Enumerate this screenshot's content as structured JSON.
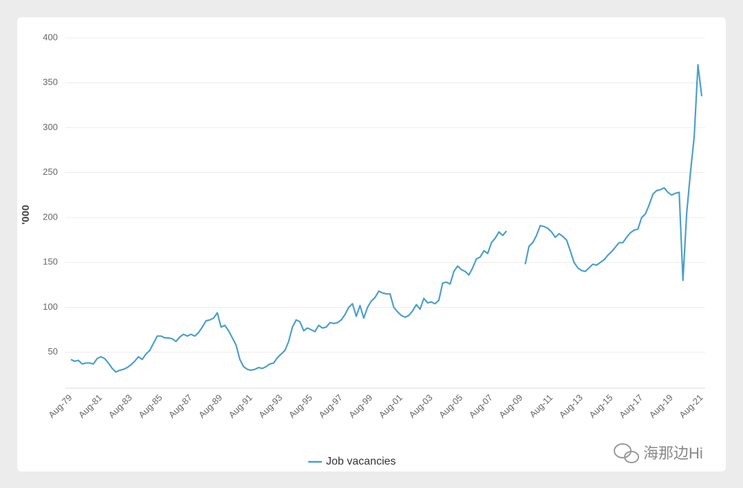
{
  "chart_data": {
    "type": "line",
    "ylabel": "'000",
    "watermark": "海那边Hi",
    "categories": [
      "Aug-79",
      null,
      null,
      null,
      null,
      null,
      null,
      null,
      "Aug-81",
      null,
      null,
      null,
      null,
      null,
      null,
      null,
      "Aug-83",
      null,
      null,
      null,
      null,
      null,
      null,
      null,
      "Aug-85",
      null,
      null,
      null,
      null,
      null,
      null,
      null,
      "Aug-87",
      null,
      null,
      null,
      null,
      null,
      null,
      null,
      "Aug-89",
      null,
      null,
      null,
      null,
      null,
      null,
      null,
      "Aug-91",
      null,
      null,
      null,
      null,
      null,
      null,
      null,
      "Aug-93",
      null,
      null,
      null,
      null,
      null,
      null,
      null,
      "Aug-95",
      null,
      null,
      null,
      null,
      null,
      null,
      null,
      "Aug-97",
      null,
      null,
      null,
      null,
      null,
      null,
      null,
      "Aug-99",
      null,
      null,
      null,
      null,
      null,
      null,
      null,
      "Aug-01",
      null,
      null,
      null,
      null,
      null,
      null,
      null,
      "Aug-03",
      null,
      null,
      null,
      null,
      null,
      null,
      null,
      "Aug-05",
      null,
      null,
      null,
      null,
      null,
      null,
      null,
      "Aug-07",
      null,
      null,
      null,
      null,
      null,
      null,
      null,
      "Aug-09",
      null,
      null,
      null,
      null,
      null,
      null,
      null,
      "Aug-11",
      null,
      null,
      null,
      null,
      null,
      null,
      null,
      "Aug-13",
      null,
      null,
      null,
      null,
      null,
      null,
      null,
      "Aug-15",
      null,
      null,
      null,
      null,
      null,
      null,
      null,
      "Aug-17",
      null,
      null,
      null,
      null,
      null,
      null,
      null,
      "Aug-19",
      null,
      null,
      null,
      null,
      null,
      null,
      null,
      "Aug-21"
    ],
    "series": [
      {
        "name": "Job vacancies",
        "color": "#4a9fcb",
        "values": [
          42,
          40,
          41,
          37,
          38,
          38,
          37,
          43,
          45,
          43,
          38,
          32,
          28,
          30,
          31,
          33,
          36,
          40,
          45,
          42,
          48,
          52,
          60,
          68,
          68,
          66,
          66,
          65,
          62,
          67,
          70,
          68,
          70,
          68,
          72,
          78,
          85,
          86,
          88,
          94,
          78,
          80,
          74,
          66,
          58,
          42,
          34,
          31,
          30,
          31,
          33,
          32,
          34,
          37,
          38,
          44,
          48,
          52,
          62,
          78,
          86,
          84,
          74,
          77,
          75,
          73,
          80,
          77,
          78,
          83,
          82,
          83,
          86,
          92,
          100,
          104,
          90,
          102,
          88,
          100,
          107,
          111,
          118,
          116,
          115,
          115,
          100,
          95,
          91,
          89,
          91,
          96,
          103,
          98,
          110,
          105,
          106,
          104,
          108,
          127,
          128,
          126,
          140,
          146,
          142,
          140,
          136,
          144,
          154,
          156,
          163,
          160,
          172,
          177,
          184,
          180,
          185,
          null,
          null,
          null,
          null,
          148,
          168,
          172,
          180,
          191,
          190,
          188,
          184,
          178,
          182,
          179,
          175,
          163,
          150,
          144,
          141,
          140,
          144,
          148,
          147,
          150,
          153,
          158,
          162,
          167,
          172,
          172,
          178,
          183,
          186,
          187,
          200,
          204,
          214,
          226,
          230,
          231,
          233,
          228,
          225,
          227,
          228,
          130,
          205,
          250,
          290,
          370,
          335
        ]
      }
    ],
    "ylim": [
      10,
      400
    ],
    "yticks": [
      50,
      100,
      150,
      200,
      250,
      300,
      350,
      400
    ],
    "grid": true
  }
}
